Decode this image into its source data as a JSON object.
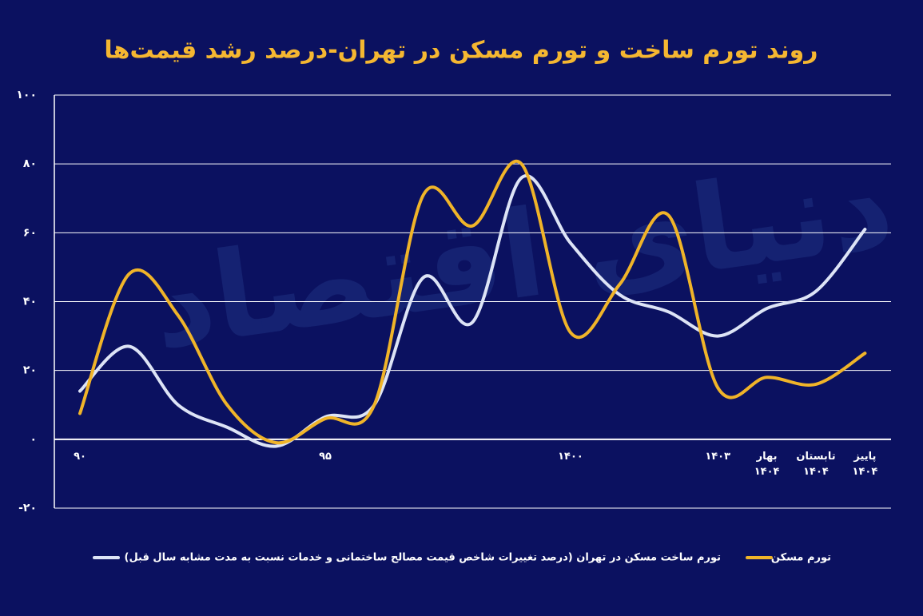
{
  "chart_data": {
    "type": "line",
    "title": "روند تورم ساخت و تورم مسکن در تهران-درصد رشد قیمت‌ها",
    "watermark": "دنیای اقتصاد",
    "categories": [
      "۹۰",
      null,
      null,
      null,
      null,
      "۹۵",
      null,
      null,
      null,
      null,
      "۱۴۰۰",
      null,
      null,
      "۱۴۰۳",
      "بهار ۱۴۰۴",
      "تابستان ۱۴۰۴",
      "پاییز ۱۴۰۴"
    ],
    "series": [
      {
        "name": "تورم ساخت مسکن در تهران (درصد تغییرات شاخص قیمت مصالح ساختمانی و خدمات نسبت به مدت مشابه سال قبل)",
        "color": "#dde4f6",
        "values": [
          14,
          27,
          10,
          3.5,
          -2,
          6.5,
          10,
          47,
          34,
          76,
          57,
          42,
          37,
          30,
          38,
          43,
          61
        ]
      },
      {
        "name": "تورم مسکن",
        "color": "#f0b429",
        "values": [
          7.5,
          48,
          36,
          10,
          -1,
          6,
          10,
          71,
          62,
          80,
          31,
          45,
          65,
          15,
          18,
          16,
          25
        ]
      }
    ],
    "ylim": [
      -20,
      100
    ],
    "yticks": [
      {
        "value": -20,
        "label": "-۲۰"
      },
      {
        "value": 0,
        "label": "۰"
      },
      {
        "value": 20,
        "label": "۲۰"
      },
      {
        "value": 40,
        "label": "۴۰"
      },
      {
        "value": 60,
        "label": "۶۰"
      },
      {
        "value": 80,
        "label": "۸۰"
      },
      {
        "value": 100,
        "label": "۱۰۰"
      }
    ],
    "grid": true,
    "legend_position": "bottom"
  }
}
